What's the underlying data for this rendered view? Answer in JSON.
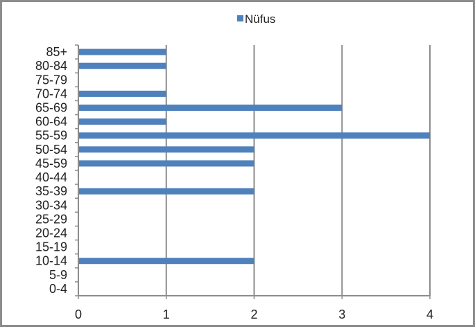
{
  "chart_data": {
    "type": "bar",
    "orientation": "horizontal",
    "categories": [
      "0-4",
      "5-9",
      "10-14",
      "15-19",
      "20-24",
      "25-29",
      "30-34",
      "35-39",
      "40-44",
      "45-59",
      "50-54",
      "55-59",
      "60-64",
      "65-69",
      "70-74",
      "75-79",
      "80-84",
      "85+"
    ],
    "series": [
      {
        "name": "Nüfus",
        "color": "#4f81bd",
        "values": [
          0,
          0,
          2,
          0,
          0,
          0,
          0,
          2,
          0,
          2,
          2,
          4,
          1,
          3,
          1,
          0,
          1,
          1
        ]
      }
    ],
    "xlim": [
      0,
      4
    ],
    "x_ticks": [
      "0",
      "1",
      "2",
      "3",
      "4"
    ],
    "grid": true,
    "legend_position": "top"
  }
}
